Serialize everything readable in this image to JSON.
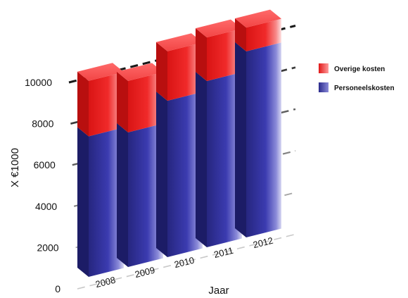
{
  "chart_data": {
    "type": "bar",
    "stacked": true,
    "three_d": true,
    "categories": [
      "2008",
      "2009",
      "2010",
      "2011",
      "2012"
    ],
    "series": [
      {
        "name": "Personeelskosten",
        "values": [
          7100,
          6800,
          7900,
          8400,
          9400
        ],
        "color": "#2e2e9a"
      },
      {
        "name": "Overige kosten",
        "values": [
          2800,
          2600,
          2500,
          2200,
          1200
        ],
        "color": "#ee1c1c"
      }
    ],
    "xlabel": "Jaar",
    "ylabel": "X  €1000",
    "ylim": [
      0,
      10000
    ],
    "yticks": [
      0,
      2000,
      4000,
      6000,
      8000,
      10000
    ],
    "legend_position": "right",
    "grid": true
  }
}
